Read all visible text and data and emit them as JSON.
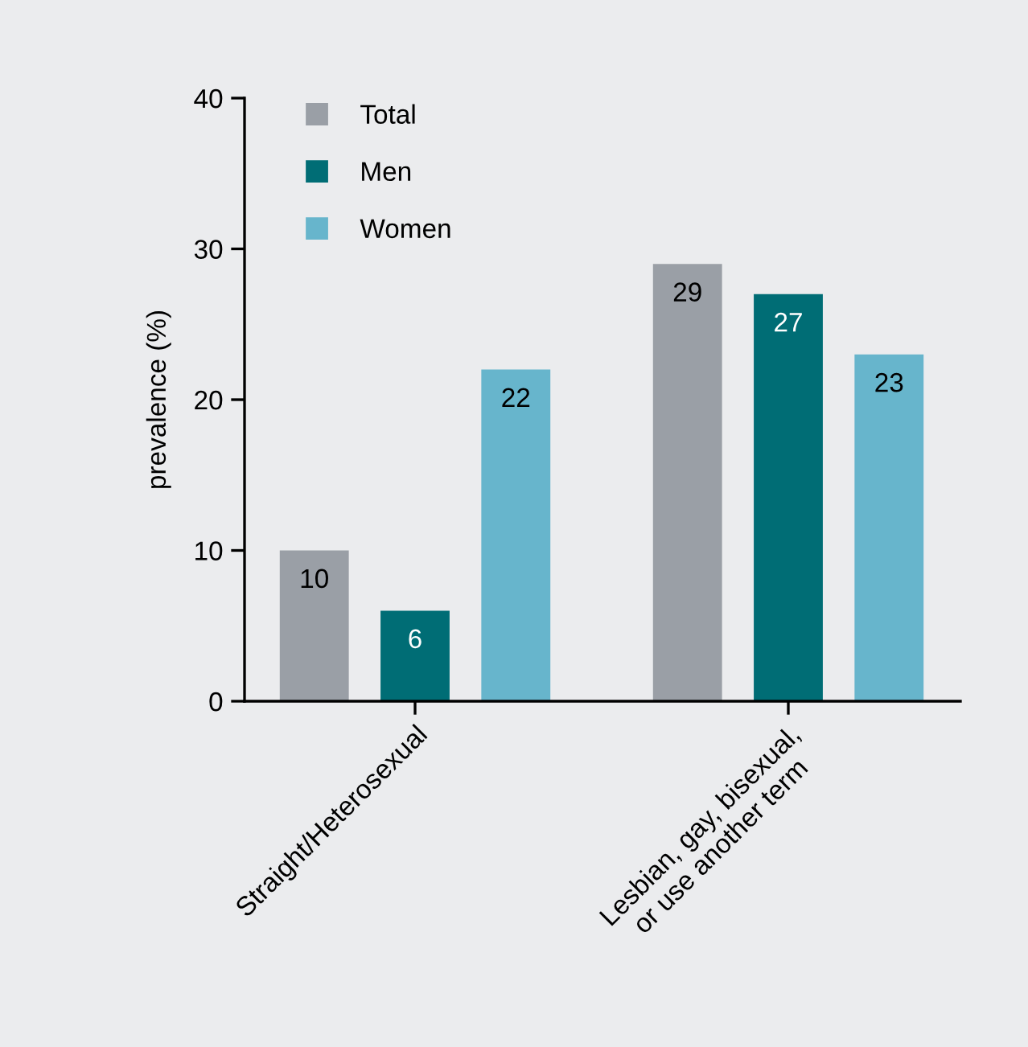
{
  "chart_data": {
    "type": "bar",
    "ylabel": "prevalence (%)",
    "categories": [
      "Straight/Heterosexual",
      "Lesbian, gay, bisexual,\nor use another term"
    ],
    "series": [
      {
        "name": "Total",
        "color": "#9a9fa6",
        "values": [
          10,
          29
        ]
      },
      {
        "name": "Men",
        "color": "#006d75",
        "values": [
          6,
          27
        ]
      },
      {
        "name": "Women",
        "color": "#67b5cc",
        "values": [
          22,
          23
        ]
      }
    ],
    "ylim": [
      0,
      40
    ],
    "yticks": [
      0,
      10,
      20,
      30,
      40
    ],
    "grid": false,
    "legend": "top left",
    "data_labels": true
  }
}
